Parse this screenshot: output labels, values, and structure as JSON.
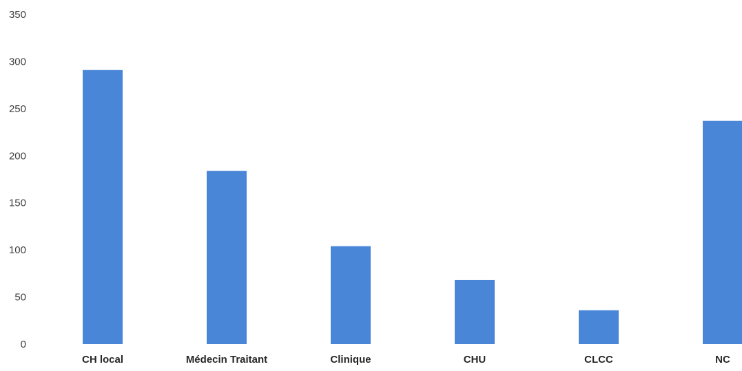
{
  "chart_data": {
    "type": "bar",
    "title": "",
    "xlabel": "",
    "ylabel": "",
    "categories": [
      "CH local",
      "Médecin Traitant",
      "Clinique",
      "CHU",
      "CLCC",
      "NC"
    ],
    "values": [
      291,
      184,
      104,
      68,
      36,
      237
    ],
    "ylim": [
      0,
      350
    ],
    "yticks": [
      0,
      50,
      100,
      150,
      200,
      250,
      300,
      350
    ],
    "ytick_labels": [
      "0",
      "50",
      "100",
      "150",
      "200",
      "250",
      "300",
      "350"
    ],
    "grid": false,
    "legend": "none",
    "bar_color": "#4a86d8"
  }
}
